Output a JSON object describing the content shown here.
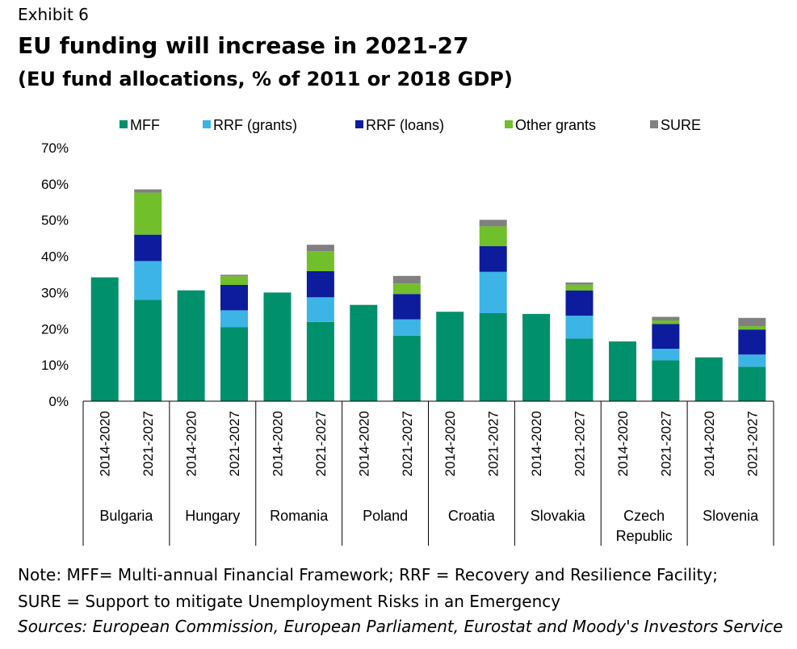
{
  "header": {
    "exhibit": "Exhibit 6",
    "title": "EU funding will increase in 2021-27",
    "subtitle": "(EU fund allocations, % of 2011 or 2018 GDP)"
  },
  "footer": {
    "note_line1": "Note: MFF= Multi-annual Financial Framework; RRF = Recovery and Resilience Facility;",
    "note_line2": "SURE = Support to mitigate Unemployment Risks in an Emergency",
    "sources": "Sources: European Commission, European Parliament, Eurostat and Moody's Investors Service"
  },
  "chart_data": {
    "type": "bar",
    "stacked": true,
    "ylim": [
      0,
      70
    ],
    "yticks": [
      0,
      10,
      20,
      30,
      40,
      50,
      60,
      70
    ],
    "ytick_labels": [
      "0%",
      "10%",
      "20%",
      "30%",
      "40%",
      "50%",
      "60%",
      "70%"
    ],
    "legend_position": "top",
    "groups": [
      {
        "name": "Bulgaria",
        "lines": [
          "Bulgaria"
        ]
      },
      {
        "name": "Hungary",
        "lines": [
          "Hungary"
        ]
      },
      {
        "name": "Romania",
        "lines": [
          "Romania"
        ]
      },
      {
        "name": "Poland",
        "lines": [
          "Poland"
        ]
      },
      {
        "name": "Croatia",
        "lines": [
          "Croatia"
        ]
      },
      {
        "name": "Slovakia",
        "lines": [
          "Slovakia"
        ]
      },
      {
        "name": "Czech Republic",
        "lines": [
          "Czech",
          "Republic"
        ]
      },
      {
        "name": "Slovenia",
        "lines": [
          "Slovenia"
        ]
      }
    ],
    "periods": [
      "2014-2020",
      "2021-2027"
    ],
    "categories": [
      "Bulgaria 2014-2020",
      "Bulgaria 2021-2027",
      "Hungary 2014-2020",
      "Hungary 2021-2027",
      "Romania 2014-2020",
      "Romania 2021-2027",
      "Poland 2014-2020",
      "Poland 2021-2027",
      "Croatia 2014-2020",
      "Croatia 2021-2027",
      "Slovakia 2014-2020",
      "Slovakia 2021-2027",
      "Czech Republic 2014-2020",
      "Czech Republic 2021-2027",
      "Slovenia 2014-2020",
      "Slovenia 2021-2027"
    ],
    "series": [
      {
        "name": "MFF",
        "color": "#00906B",
        "values": [
          34.2,
          28.0,
          30.6,
          20.4,
          30.0,
          21.9,
          26.6,
          18.1,
          24.7,
          24.3,
          24.1,
          17.3,
          16.5,
          11.3,
          12.1,
          9.5
        ]
      },
      {
        "name": "RRF (grants)",
        "color": "#3CB4E5",
        "values": [
          0,
          10.7,
          0,
          4.7,
          0,
          6.8,
          0,
          4.5,
          0,
          11.4,
          0,
          6.3,
          0,
          3.2,
          0,
          3.4
        ]
      },
      {
        "name": "RRF (loans)",
        "color": "#0D1C9C",
        "values": [
          0,
          7.3,
          0,
          7.0,
          0,
          7.2,
          0,
          7.0,
          0,
          7.1,
          0,
          7.0,
          0,
          6.8,
          0,
          6.9
        ]
      },
      {
        "name": "Other grants",
        "color": "#71BF2A",
        "values": [
          0,
          11.6,
          0,
          2.4,
          0,
          5.5,
          0,
          2.9,
          0,
          5.5,
          0,
          1.6,
          0,
          1.0,
          0,
          0.9
        ]
      },
      {
        "name": "SURE",
        "color": "#808080",
        "values": [
          0,
          0.9,
          0,
          0.4,
          0,
          1.8,
          0,
          2.1,
          0,
          1.8,
          0,
          0.6,
          0,
          1.0,
          0,
          2.3
        ]
      }
    ]
  }
}
